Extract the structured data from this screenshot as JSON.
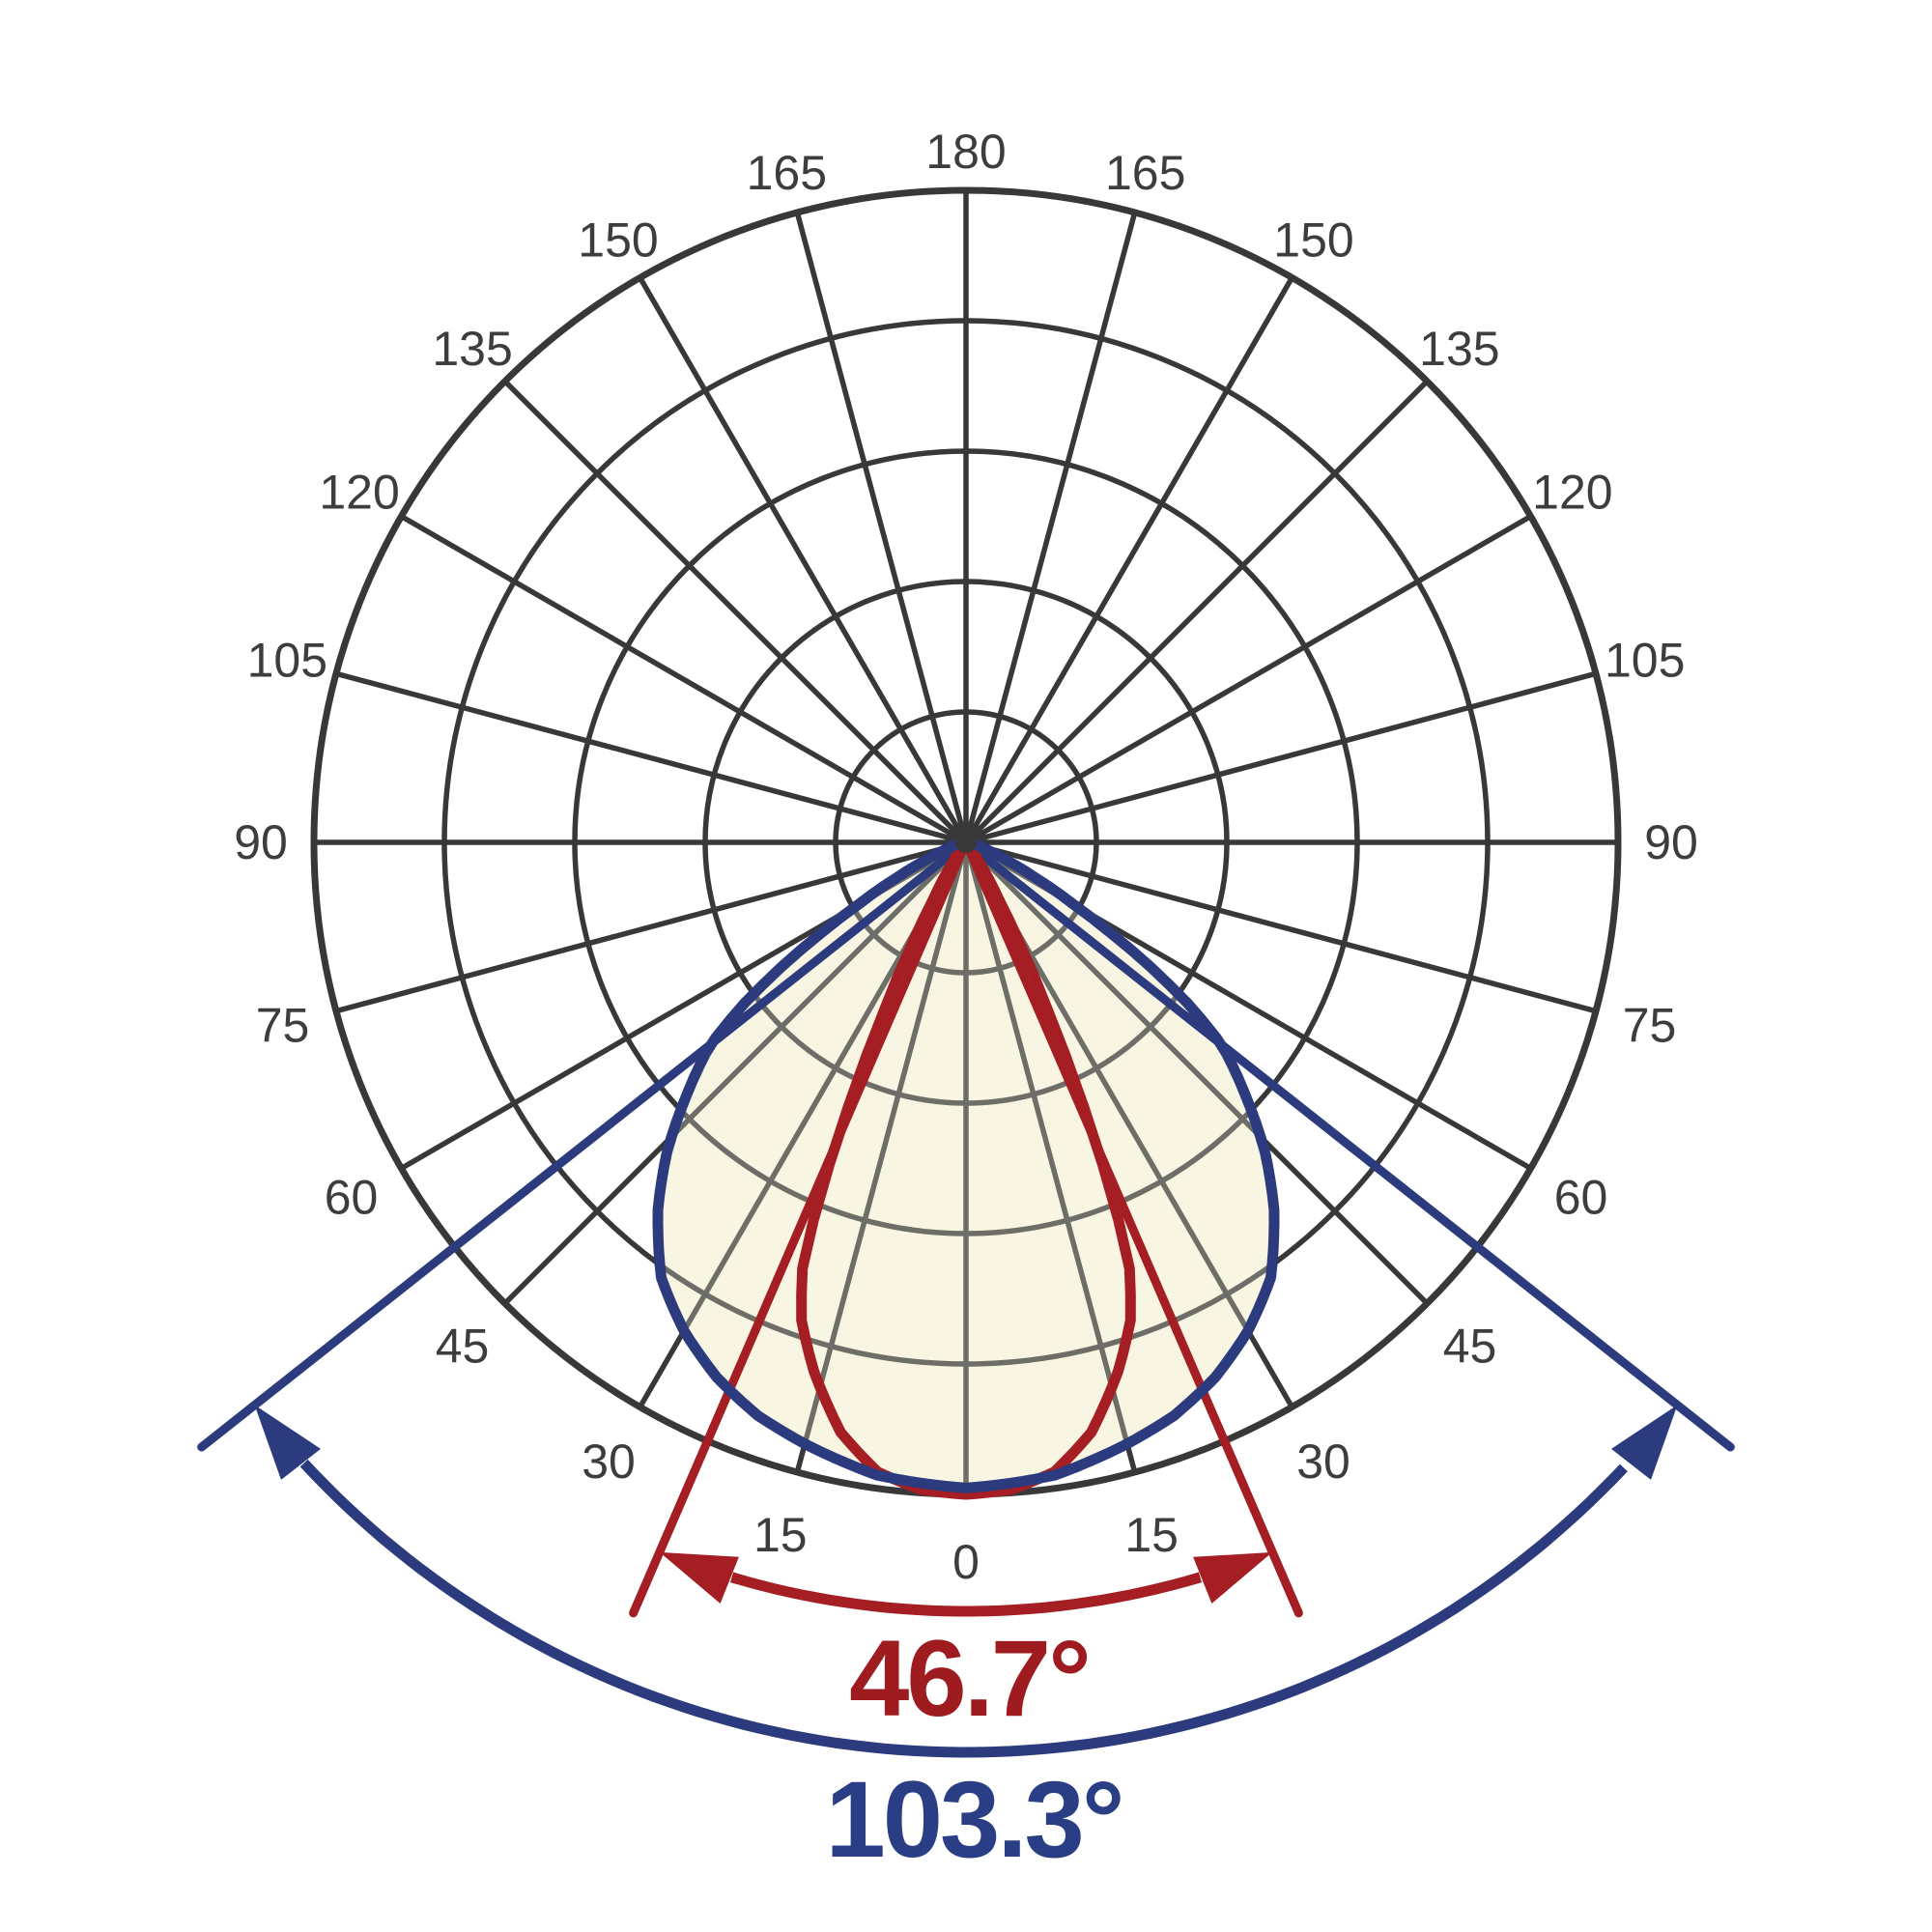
{
  "page": {
    "background": "#ffffff",
    "description": "Photometric polar luminous intensity distribution diagram with narrow and wide beam curves"
  },
  "chart_data": {
    "type": "polar",
    "subtype": "photometric-intensity-distribution",
    "angle_unit": "degrees",
    "angle_ticks": [
      0,
      15,
      30,
      45,
      60,
      75,
      90,
      105,
      120,
      135,
      150,
      165,
      180
    ],
    "ring_fractions": [
      0.2,
      0.4,
      0.6,
      0.8,
      1.0
    ],
    "grid": true,
    "legend": false,
    "colors": {
      "grid": "#383838",
      "muted_grid": "#6e6e68",
      "fill": "#f8f5e2",
      "tick_label": "#3d3d3d",
      "red": "#a41e24",
      "blue": "#2b3b7e",
      "red_text": "#9e1c20",
      "blue_text": "#2a3e86"
    },
    "series": [
      {
        "name": "narrow-beam-curve",
        "color": "#a41e24",
        "beam_angle_deg": 46.7,
        "label": "46.7°",
        "profile_deg_fraction": [
          [
            0,
            1.0
          ],
          [
            4,
            0.995
          ],
          [
            8,
            0.975
          ],
          [
            12,
            0.925
          ],
          [
            16,
            0.845
          ],
          [
            19,
            0.775
          ],
          [
            21,
            0.7
          ],
          [
            22.5,
            0.585
          ],
          [
            23.35,
            0.5
          ],
          [
            24.5,
            0.4
          ],
          [
            26,
            0.285
          ],
          [
            28,
            0.175
          ],
          [
            30,
            0.1
          ],
          [
            33,
            0.048
          ],
          [
            36,
            0.022
          ],
          [
            40,
            0.01
          ],
          [
            45,
            0.004
          ],
          [
            55,
            0.001
          ],
          [
            90,
            0
          ]
        ]
      },
      {
        "name": "wide-beam-curve",
        "color": "#2b3b7e",
        "beam_angle_deg": 103.3,
        "label": "103.3°",
        "profile_deg_fraction": [
          [
            0,
            0.99
          ],
          [
            8,
            0.98
          ],
          [
            15,
            0.955
          ],
          [
            20,
            0.935
          ],
          [
            25,
            0.905
          ],
          [
            30,
            0.865
          ],
          [
            35,
            0.815
          ],
          [
            40,
            0.735
          ],
          [
            44,
            0.66
          ],
          [
            48,
            0.575
          ],
          [
            51.65,
            0.5
          ],
          [
            54,
            0.42
          ],
          [
            56,
            0.34
          ],
          [
            58,
            0.26
          ],
          [
            60,
            0.19
          ],
          [
            63,
            0.12
          ],
          [
            66,
            0.07
          ],
          [
            70,
            0.038
          ],
          [
            75,
            0.018
          ],
          [
            80,
            0.008
          ],
          [
            85,
            0.003
          ],
          [
            90,
            0
          ]
        ]
      }
    ]
  }
}
